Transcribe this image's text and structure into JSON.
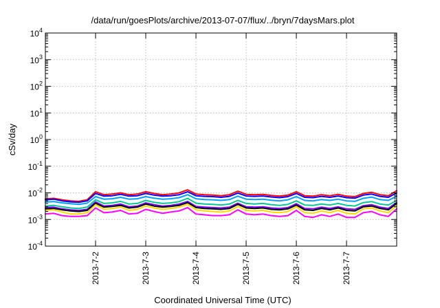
{
  "chart_data": {
    "type": "line",
    "title": "/data/run/goesPlots/archive/2013-07-07/flux/../bryn/7daysMars.plot",
    "xlabel": "Coordinated Universal Time (UTC)",
    "ylabel": "cSv/day",
    "yscale": "log",
    "ylim": [
      0.0001,
      10000
    ],
    "ytick_labels": [
      {
        "base": "10",
        "exp": "-4"
      },
      {
        "base": "10",
        "exp": "-3"
      },
      {
        "base": "10",
        "exp": "-2"
      },
      {
        "base": "10",
        "exp": "-1"
      },
      {
        "base": "10",
        "exp": "0"
      },
      {
        "base": "10",
        "exp": "1"
      },
      {
        "base": "10",
        "exp": "2"
      },
      {
        "base": "10",
        "exp": "3"
      },
      {
        "base": "10",
        "exp": "4"
      }
    ],
    "xlim": [
      "2013-07-01 00:00",
      "2013-07-07 23:59"
    ],
    "xtick_labels": [
      "2013-7-2",
      "2013-7-3",
      "2013-7-4",
      "2013-7-5",
      "2013-7-6",
      "2013-7-7"
    ],
    "grid": true,
    "legend": "none",
    "x": [
      "2013-07-01 00:00",
      "2013-07-01 04:00",
      "2013-07-01 08:00",
      "2013-07-01 12:00",
      "2013-07-01 16:00",
      "2013-07-01 20:00",
      "2013-07-02 00:00",
      "2013-07-02 04:00",
      "2013-07-02 08:00",
      "2013-07-02 12:00",
      "2013-07-02 16:00",
      "2013-07-02 20:00",
      "2013-07-03 00:00",
      "2013-07-03 04:00",
      "2013-07-03 08:00",
      "2013-07-03 12:00",
      "2013-07-03 16:00",
      "2013-07-03 20:00",
      "2013-07-04 00:00",
      "2013-07-04 04:00",
      "2013-07-04 08:00",
      "2013-07-04 12:00",
      "2013-07-04 16:00",
      "2013-07-04 20:00",
      "2013-07-05 00:00",
      "2013-07-05 04:00",
      "2013-07-05 08:00",
      "2013-07-05 12:00",
      "2013-07-05 16:00",
      "2013-07-05 20:00",
      "2013-07-06 00:00",
      "2013-07-06 04:00",
      "2013-07-06 08:00",
      "2013-07-06 12:00",
      "2013-07-06 16:00",
      "2013-07-06 20:00",
      "2013-07-07 00:00",
      "2013-07-07 04:00",
      "2013-07-07 08:00",
      "2013-07-07 12:00",
      "2013-07-07 16:00",
      "2013-07-07 20:00",
      "2013-07-07 23:59"
    ],
    "series": [
      {
        "color": "#ff0000",
        "values": [
          0.006,
          0.0062,
          0.0055,
          0.005,
          0.0048,
          0.0055,
          0.011,
          0.0085,
          0.009,
          0.01,
          0.0085,
          0.009,
          0.011,
          0.0095,
          0.0085,
          0.009,
          0.01,
          0.013,
          0.009,
          0.0085,
          0.0082,
          0.0078,
          0.0085,
          0.0115,
          0.0088,
          0.0085,
          0.0088,
          0.008,
          0.0075,
          0.0082,
          0.011,
          0.0078,
          0.0075,
          0.0085,
          0.0078,
          0.0088,
          0.0075,
          0.0072,
          0.0095,
          0.0105,
          0.0085,
          0.0078,
          0.012
        ]
      },
      {
        "color": "#0000ff",
        "values": [
          0.0055,
          0.0058,
          0.005,
          0.0046,
          0.0044,
          0.005,
          0.0095,
          0.0075,
          0.0078,
          0.0088,
          0.0075,
          0.0078,
          0.0095,
          0.0082,
          0.0075,
          0.0078,
          0.0085,
          0.011,
          0.0078,
          0.0074,
          0.0072,
          0.0068,
          0.0074,
          0.0098,
          0.0076,
          0.0074,
          0.0076,
          0.007,
          0.0066,
          0.0072,
          0.0095,
          0.0068,
          0.0066,
          0.0074,
          0.0068,
          0.0076,
          0.0066,
          0.0063,
          0.0082,
          0.009,
          0.0074,
          0.0068,
          0.01
        ]
      },
      {
        "color": "#00a0ff",
        "values": [
          0.0045,
          0.0047,
          0.0042,
          0.0039,
          0.0037,
          0.0041,
          0.0072,
          0.0058,
          0.006,
          0.0068,
          0.0058,
          0.006,
          0.0072,
          0.0063,
          0.0058,
          0.006,
          0.0066,
          0.0085,
          0.006,
          0.0056,
          0.0055,
          0.0052,
          0.0056,
          0.0075,
          0.0058,
          0.0056,
          0.0058,
          0.0053,
          0.005,
          0.0055,
          0.0072,
          0.0052,
          0.005,
          0.0056,
          0.0052,
          0.0058,
          0.005,
          0.0048,
          0.0062,
          0.0069,
          0.0056,
          0.0052,
          0.0075
        ]
      },
      {
        "color": "#00c896",
        "values": [
          0.0032,
          0.0034,
          0.003,
          0.0027,
          0.0026,
          0.0029,
          0.0055,
          0.004,
          0.0042,
          0.0048,
          0.0038,
          0.004,
          0.0052,
          0.0044,
          0.004,
          0.0042,
          0.0047,
          0.0062,
          0.0041,
          0.0038,
          0.0037,
          0.0035,
          0.0038,
          0.0052,
          0.004,
          0.0038,
          0.004,
          0.0036,
          0.0034,
          0.0037,
          0.005,
          0.0035,
          0.0034,
          0.0038,
          0.0035,
          0.004,
          0.0034,
          0.0032,
          0.0043,
          0.0047,
          0.0038,
          0.0035,
          0.0052
        ]
      },
      {
        "color": "#8000ff",
        "values": [
          0.0028,
          0.0029,
          0.0025,
          0.0023,
          0.0022,
          0.0024,
          0.0046,
          0.0032,
          0.0034,
          0.0038,
          0.003,
          0.0032,
          0.0042,
          0.0036,
          0.0032,
          0.0034,
          0.0038,
          0.0048,
          0.0031,
          0.0029,
          0.0028,
          0.0027,
          0.0029,
          0.0041,
          0.003,
          0.0029,
          0.003,
          0.0027,
          0.0026,
          0.0028,
          0.0039,
          0.0026,
          0.0025,
          0.0029,
          0.0026,
          0.003,
          0.0025,
          0.0024,
          0.0033,
          0.0036,
          0.0029,
          0.0026,
          0.0044
        ]
      },
      {
        "color": "#000000",
        "values": [
          0.0025,
          0.0026,
          0.0023,
          0.0021,
          0.002,
          0.0022,
          0.0041,
          0.0029,
          0.0031,
          0.0034,
          0.0027,
          0.0029,
          0.0038,
          0.0032,
          0.0029,
          0.0031,
          0.0034,
          0.0043,
          0.0028,
          0.0026,
          0.0025,
          0.0024,
          0.0026,
          0.0037,
          0.0027,
          0.0026,
          0.0027,
          0.0024,
          0.0023,
          0.0025,
          0.0035,
          0.0023,
          0.0022,
          0.0026,
          0.0023,
          0.0027,
          0.0022,
          0.0021,
          0.003,
          0.0032,
          0.0026,
          0.0023,
          0.004
        ]
      },
      {
        "color": "#ffd800",
        "values": [
          0.0022,
          0.0023,
          0.0019,
          0.0016,
          0.0016,
          0.0018,
          0.0036,
          0.0024,
          0.0026,
          0.0029,
          0.0022,
          0.0024,
          0.0032,
          0.0027,
          0.0024,
          0.0026,
          0.0029,
          0.0037,
          0.0023,
          0.0021,
          0.002,
          0.0019,
          0.0021,
          0.0031,
          0.0022,
          0.0021,
          0.0022,
          0.0019,
          0.0018,
          0.002,
          0.003,
          0.0018,
          0.0017,
          0.0021,
          0.0018,
          0.0022,
          0.0017,
          0.0016,
          0.0025,
          0.0027,
          0.0021,
          0.0018,
          0.0034
        ]
      },
      {
        "color": "#ff00ff",
        "values": [
          0.0016,
          0.0017,
          0.0014,
          0.0013,
          0.0013,
          0.0014,
          0.0027,
          0.0018,
          0.0019,
          0.0022,
          0.0016,
          0.0017,
          0.0024,
          0.002,
          0.0017,
          0.0019,
          0.0021,
          0.0028,
          0.0016,
          0.0015,
          0.0014,
          0.0014,
          0.0015,
          0.0023,
          0.0016,
          0.0015,
          0.0016,
          0.0014,
          0.0013,
          0.0014,
          0.0022,
          0.0013,
          0.0012,
          0.0015,
          0.0013,
          0.0016,
          0.0012,
          0.0012,
          0.0018,
          0.002,
          0.0015,
          0.0013,
          0.0025
        ]
      }
    ]
  }
}
